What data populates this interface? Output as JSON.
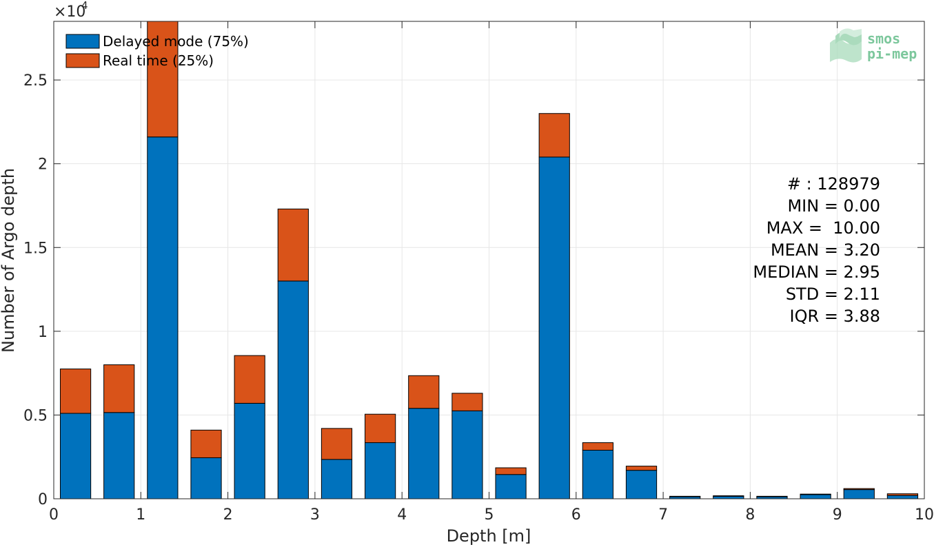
{
  "chart_data": {
    "type": "bar",
    "stacked": true,
    "xlabel": "Depth [m]",
    "ylabel": "Number of Argo depth",
    "exponent_label": "×10",
    "exponent_power": "4",
    "xlim": [
      0,
      10
    ],
    "ylim": [
      0,
      2.85
    ],
    "y_scale_multiplier": 10000,
    "x_ticks": [
      0,
      1,
      2,
      3,
      4,
      5,
      6,
      7,
      8,
      9,
      10
    ],
    "y_ticks": [
      0,
      0.5,
      1,
      1.5,
      2,
      2.5
    ],
    "y_tick_labels": [
      "0",
      "0.5",
      "1",
      "1.5",
      "2",
      "2.5"
    ],
    "grid": true,
    "legend_position": "top-left",
    "bin_width": 0.5,
    "bar_width": 0.35,
    "x": [
      0.25,
      0.75,
      1.25,
      1.75,
      2.25,
      2.75,
      3.25,
      3.75,
      4.25,
      4.75,
      5.25,
      5.75,
      6.25,
      6.75,
      7.25,
      7.75,
      8.25,
      8.75,
      9.25,
      9.75
    ],
    "series": [
      {
        "name": "Delayed mode (75%)",
        "color": "#0072bd",
        "values": [
          0.51,
          0.515,
          2.16,
          0.245,
          0.57,
          1.3,
          0.235,
          0.335,
          0.54,
          0.525,
          0.145,
          2.04,
          0.29,
          0.17,
          0.012,
          0.015,
          0.012,
          0.025,
          0.055,
          0.02
        ]
      },
      {
        "name": "Real time (25%)",
        "color": "#d95319",
        "values": [
          0.265,
          0.285,
          0.69,
          0.165,
          0.285,
          0.43,
          0.185,
          0.17,
          0.195,
          0.105,
          0.04,
          0.26,
          0.045,
          0.025,
          0.003,
          0.003,
          0.003,
          0.003,
          0.006,
          0.01
        ]
      }
    ],
    "stats": [
      "# : 128979",
      "MIN = 0.00",
      "MAX =  10.00",
      "MEAN = 3.20",
      "MEDIAN = 2.95",
      "STD = 2.11",
      "IQR = 3.88"
    ]
  },
  "logo": {
    "line1": "smos",
    "line2": "pi-mep"
  }
}
